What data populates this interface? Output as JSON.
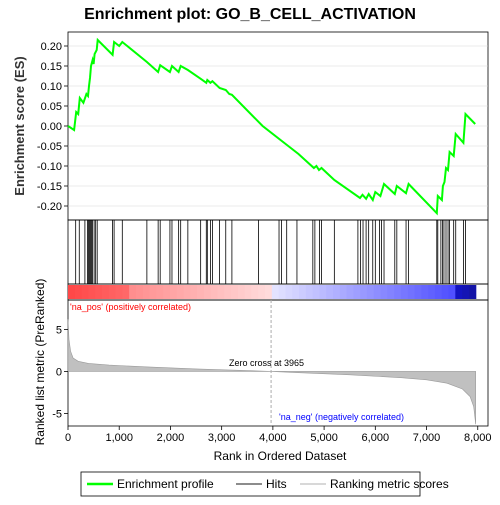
{
  "chart_data": {
    "type": "line",
    "title": "Enrichment plot: GO_B_CELL_ACTIVATION",
    "es_panel": {
      "ylabel": "Enrichment score (ES)",
      "ylim": [
        -0.235,
        0.235
      ],
      "yticks": [
        -0.2,
        -0.15,
        -0.1,
        -0.05,
        0.0,
        0.05,
        0.1,
        0.15,
        0.2
      ],
      "ytick_labels": [
        "-0.20",
        "-0.15",
        "-0.10",
        "-0.05",
        "0.00",
        "0.05",
        "0.10",
        "0.15",
        "0.20"
      ],
      "series": [
        {
          "name": "Enrichment profile",
          "color": "#00ff00",
          "points": [
            [
              0,
              0.0
            ],
            [
              120,
              -0.01
            ],
            [
              160,
              0.035
            ],
            [
              200,
              0.03
            ],
            [
              230,
              0.07
            ],
            [
              300,
              0.058
            ],
            [
              360,
              0.08
            ],
            [
              390,
              0.075
            ],
            [
              410,
              0.1
            ],
            [
              430,
              0.12
            ],
            [
              450,
              0.15
            ],
            [
              480,
              0.165
            ],
            [
              500,
              0.155
            ],
            [
              520,
              0.18
            ],
            [
              560,
              0.19
            ],
            [
              580,
              0.215
            ],
            [
              870,
              0.178
            ],
            [
              900,
              0.21
            ],
            [
              1000,
              0.2
            ],
            [
              1060,
              0.21
            ],
            [
              1540,
              0.16
            ],
            [
              1760,
              0.135
            ],
            [
              1800,
              0.152
            ],
            [
              1990,
              0.135
            ],
            [
              2030,
              0.15
            ],
            [
              2160,
              0.135
            ],
            [
              2200,
              0.15
            ],
            [
              2340,
              0.14
            ],
            [
              2590,
              0.118
            ],
            [
              2700,
              0.108
            ],
            [
              2720,
              0.115
            ],
            [
              2780,
              0.108
            ],
            [
              2820,
              0.112
            ],
            [
              2960,
              0.095
            ],
            [
              3080,
              0.09
            ],
            [
              3150,
              0.08
            ],
            [
              3200,
              0.078
            ],
            [
              3800,
              0.0
            ],
            [
              4200,
              -0.04
            ],
            [
              4500,
              -0.07
            ],
            [
              4800,
              -0.105
            ],
            [
              4850,
              -0.1
            ],
            [
              4900,
              -0.11
            ],
            [
              4950,
              -0.105
            ],
            [
              5200,
              -0.135
            ],
            [
              5700,
              -0.18
            ],
            [
              5750,
              -0.172
            ],
            [
              5820,
              -0.182
            ],
            [
              5870,
              -0.17
            ],
            [
              5950,
              -0.185
            ],
            [
              6000,
              -0.165
            ],
            [
              6100,
              -0.175
            ],
            [
              6170,
              -0.145
            ],
            [
              6380,
              -0.17
            ],
            [
              6420,
              -0.15
            ],
            [
              6600,
              -0.168
            ],
            [
              6650,
              -0.145
            ],
            [
              7200,
              -0.218
            ],
            [
              7220,
              -0.175
            ],
            [
              7300,
              -0.185
            ],
            [
              7320,
              -0.15
            ],
            [
              7350,
              -0.14
            ],
            [
              7380,
              -0.105
            ],
            [
              7420,
              -0.11
            ],
            [
              7450,
              -0.065
            ],
            [
              7530,
              -0.075
            ],
            [
              7570,
              -0.02
            ],
            [
              7720,
              -0.042
            ],
            [
              7760,
              0.03
            ],
            [
              7950,
              0.005
            ]
          ]
        }
      ]
    },
    "hits_panel": {
      "series_name": "Hits",
      "positions": [
        150,
        220,
        330,
        380,
        400,
        420,
        440,
        460,
        480,
        510,
        540,
        570,
        870,
        900,
        1060,
        1540,
        1760,
        1800,
        1990,
        2030,
        2160,
        2200,
        2340,
        2590,
        2700,
        2720,
        2780,
        2820,
        2960,
        3080,
        3200,
        3720,
        4120,
        4170,
        4270,
        4470,
        4780,
        4820,
        4910,
        4950,
        5200,
        5660,
        5710,
        5760,
        5820,
        5870,
        5950,
        6000,
        6080,
        6120,
        6170,
        6380,
        6420,
        6600,
        6650,
        7200,
        7220,
        7280,
        7310,
        7340,
        7380,
        7420,
        7450,
        7530,
        7570,
        7720,
        7760
      ]
    },
    "ranking_panel": {
      "ylabel": "Ranked list metric (PreRanked)",
      "xlabel": "Rank in Ordered Dataset",
      "series_name": "Ranking metric scores",
      "ylim": [
        -6.5,
        8.5
      ],
      "yticks": [
        -5,
        0,
        5
      ],
      "ytick_labels": [
        "-5",
        "0",
        "5"
      ],
      "xlim": [
        0,
        8200
      ],
      "xticks": [
        0,
        1000,
        2000,
        3000,
        4000,
        5000,
        6000,
        7000,
        8000
      ],
      "xtick_labels": [
        "0",
        "1,000",
        "2,000",
        "3,000",
        "4,000",
        "5,000",
        "6,000",
        "7,000",
        "8,000"
      ],
      "n_genes": 7960,
      "zero_cross": 3965,
      "zero_cross_label": "Zero cross at 3965",
      "pos_label": "'na_pos' (positively correlated)",
      "neg_label": "'na_neg' (negatively correlated)",
      "pos_color": "#ff0000",
      "neg_color": "#0000ff",
      "curve": [
        [
          0,
          6.2
        ],
        [
          20,
          3.8
        ],
        [
          50,
          2.4
        ],
        [
          100,
          1.6
        ],
        [
          200,
          1.2
        ],
        [
          400,
          0.95
        ],
        [
          800,
          0.75
        ],
        [
          1500,
          0.55
        ],
        [
          2500,
          0.3
        ],
        [
          3500,
          0.1
        ],
        [
          3965,
          0.0
        ],
        [
          4500,
          -0.15
        ],
        [
          5500,
          -0.4
        ],
        [
          6500,
          -0.75
        ],
        [
          7000,
          -1.0
        ],
        [
          7400,
          -1.4
        ],
        [
          7700,
          -2.1
        ],
        [
          7850,
          -3.0
        ],
        [
          7920,
          -4.2
        ],
        [
          7960,
          -6.3
        ]
      ]
    },
    "legend": [
      "Enrichment profile",
      "Hits",
      "Ranking metric scores"
    ],
    "colors": {
      "profile": "#00ff00",
      "hits": "#000000",
      "ranking": "#c0c0c0",
      "zero_line": "#aaaaaa",
      "pos_text": "#ff0000",
      "neg_text": "#0000ff"
    }
  }
}
